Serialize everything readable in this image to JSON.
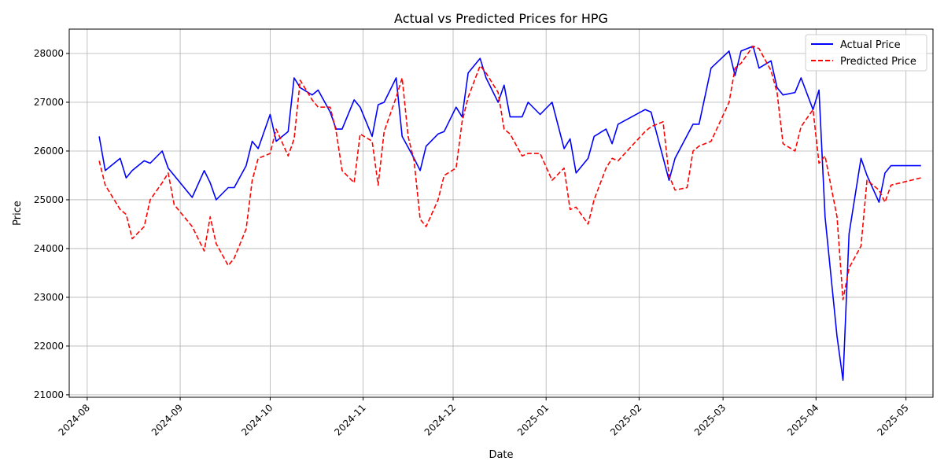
{
  "chart_data": {
    "type": "line",
    "title": "Actual vs Predicted Prices for HPG",
    "xlabel": "Date",
    "ylabel": "Price",
    "x_ticks": [
      "2024-08-01",
      "2024-09-01",
      "2024-10-01",
      "2024-11-01",
      "2024-12-01",
      "2025-01-01",
      "2025-02-01",
      "2025-03-01",
      "2025-04-01",
      "2025-05-01"
    ],
    "x_tick_labels": [
      "2024-08",
      "2024-09",
      "2024-10",
      "2024-11",
      "2024-12",
      "2025-01",
      "2025-02",
      "2025-03",
      "2025-04",
      "2025-05"
    ],
    "y_ticks": [
      21000,
      22000,
      23000,
      24000,
      25000,
      26000,
      27000,
      28000
    ],
    "y_tick_labels": [
      "21000",
      "22000",
      "23000",
      "24000",
      "25000",
      "26000",
      "27000",
      "28000"
    ],
    "xlim": [
      "2024-07-26",
      "2025-05-10"
    ],
    "ylim": [
      20950,
      28500
    ],
    "grid": true,
    "legend_position": "top-right",
    "series": [
      {
        "name": "Actual Price",
        "color": "#0000ff",
        "dash": "solid",
        "points": [
          [
            "2024-08-05",
            26300
          ],
          [
            "2024-08-07",
            25600
          ],
          [
            "2024-08-12",
            25850
          ],
          [
            "2024-08-14",
            25450
          ],
          [
            "2024-08-16",
            25600
          ],
          [
            "2024-08-20",
            25800
          ],
          [
            "2024-08-22",
            25750
          ],
          [
            "2024-08-26",
            26000
          ],
          [
            "2024-08-28",
            25650
          ],
          [
            "2024-08-30",
            25500
          ],
          [
            "2024-09-05",
            25050
          ],
          [
            "2024-09-09",
            25600
          ],
          [
            "2024-09-11",
            25350
          ],
          [
            "2024-09-13",
            25000
          ],
          [
            "2024-09-17",
            25250
          ],
          [
            "2024-09-19",
            25250
          ],
          [
            "2024-09-23",
            25700
          ],
          [
            "2024-09-25",
            26200
          ],
          [
            "2024-09-27",
            26050
          ],
          [
            "2024-10-01",
            26750
          ],
          [
            "2024-10-03",
            26200
          ],
          [
            "2024-10-07",
            26400
          ],
          [
            "2024-10-09",
            27500
          ],
          [
            "2024-10-11",
            27300
          ],
          [
            "2024-10-15",
            27150
          ],
          [
            "2024-10-17",
            27250
          ],
          [
            "2024-10-21",
            26800
          ],
          [
            "2024-10-23",
            26450
          ],
          [
            "2024-10-25",
            26450
          ],
          [
            "2024-10-29",
            27050
          ],
          [
            "2024-10-31",
            26900
          ],
          [
            "2024-11-04",
            26300
          ],
          [
            "2024-11-06",
            26950
          ],
          [
            "2024-11-08",
            27000
          ],
          [
            "2024-11-12",
            27500
          ],
          [
            "2024-11-14",
            26300
          ],
          [
            "2024-11-18",
            25850
          ],
          [
            "2024-11-20",
            25600
          ],
          [
            "2024-11-22",
            26100
          ],
          [
            "2024-11-26",
            26350
          ],
          [
            "2024-11-28",
            26400
          ],
          [
            "2024-12-02",
            26900
          ],
          [
            "2024-12-04",
            26700
          ],
          [
            "2024-12-06",
            27600
          ],
          [
            "2024-12-10",
            27900
          ],
          [
            "2024-12-12",
            27500
          ],
          [
            "2024-12-16",
            27000
          ],
          [
            "2024-12-18",
            27350
          ],
          [
            "2024-12-20",
            26700
          ],
          [
            "2024-12-24",
            26700
          ],
          [
            "2024-12-26",
            27000
          ],
          [
            "2024-12-30",
            26750
          ],
          [
            "2025-01-03",
            27000
          ],
          [
            "2025-01-07",
            26050
          ],
          [
            "2025-01-09",
            26250
          ],
          [
            "2025-01-11",
            25550
          ],
          [
            "2025-01-15",
            25850
          ],
          [
            "2025-01-17",
            26300
          ],
          [
            "2025-01-21",
            26450
          ],
          [
            "2025-01-23",
            26150
          ],
          [
            "2025-01-25",
            26550
          ],
          [
            "2025-02-03",
            26850
          ],
          [
            "2025-02-05",
            26800
          ],
          [
            "2025-02-11",
            25400
          ],
          [
            "2025-02-13",
            25850
          ],
          [
            "2025-02-19",
            26550
          ],
          [
            "2025-02-21",
            26550
          ],
          [
            "2025-02-25",
            27700
          ],
          [
            "2025-03-03",
            28050
          ],
          [
            "2025-03-05",
            27550
          ],
          [
            "2025-03-07",
            28050
          ],
          [
            "2025-03-11",
            28150
          ],
          [
            "2025-03-13",
            27700
          ],
          [
            "2025-03-17",
            27850
          ],
          [
            "2025-03-19",
            27300
          ],
          [
            "2025-03-21",
            27150
          ],
          [
            "2025-03-25",
            27200
          ],
          [
            "2025-03-27",
            27500
          ],
          [
            "2025-03-31",
            26850
          ],
          [
            "2025-04-02",
            27250
          ],
          [
            "2025-04-04",
            24650
          ],
          [
            "2025-04-08",
            22200
          ],
          [
            "2025-04-10",
            21300
          ],
          [
            "2025-04-12",
            24300
          ],
          [
            "2025-04-16",
            25850
          ],
          [
            "2025-04-18",
            25500
          ],
          [
            "2025-04-22",
            24950
          ],
          [
            "2025-04-24",
            25550
          ],
          [
            "2025-04-26",
            25700
          ],
          [
            "2025-05-06",
            25700
          ]
        ]
      },
      {
        "name": "Predicted Price",
        "color": "#ff0000",
        "dash": "dashed",
        "points": [
          [
            "2024-08-05",
            25800
          ],
          [
            "2024-08-07",
            25300
          ],
          [
            "2024-08-12",
            24800
          ],
          [
            "2024-08-14",
            24700
          ],
          [
            "2024-08-16",
            24200
          ],
          [
            "2024-08-20",
            24450
          ],
          [
            "2024-08-22",
            25000
          ],
          [
            "2024-08-26",
            25350
          ],
          [
            "2024-08-28",
            25550
          ],
          [
            "2024-08-30",
            24900
          ],
          [
            "2024-09-05",
            24450
          ],
          [
            "2024-09-09",
            23950
          ],
          [
            "2024-09-11",
            24650
          ],
          [
            "2024-09-13",
            24100
          ],
          [
            "2024-09-17",
            23650
          ],
          [
            "2024-09-19",
            23800
          ],
          [
            "2024-09-23",
            24400
          ],
          [
            "2024-09-25",
            25400
          ],
          [
            "2024-09-27",
            25850
          ],
          [
            "2024-10-01",
            25950
          ],
          [
            "2024-10-03",
            26450
          ],
          [
            "2024-10-07",
            25900
          ],
          [
            "2024-10-09",
            26250
          ],
          [
            "2024-10-11",
            27450
          ],
          [
            "2024-10-15",
            27050
          ],
          [
            "2024-10-17",
            26900
          ],
          [
            "2024-10-21",
            26900
          ],
          [
            "2024-10-23",
            26400
          ],
          [
            "2024-10-25",
            25600
          ],
          [
            "2024-10-29",
            25350
          ],
          [
            "2024-10-31",
            26350
          ],
          [
            "2024-11-04",
            26200
          ],
          [
            "2024-11-06",
            25300
          ],
          [
            "2024-11-08",
            26400
          ],
          [
            "2024-11-12",
            27100
          ],
          [
            "2024-11-14",
            27500
          ],
          [
            "2024-11-16",
            26300
          ],
          [
            "2024-11-18",
            25800
          ],
          [
            "2024-11-20",
            24600
          ],
          [
            "2024-11-22",
            24450
          ],
          [
            "2024-11-26",
            25000
          ],
          [
            "2024-11-28",
            25500
          ],
          [
            "2024-12-02",
            25650
          ],
          [
            "2024-12-04",
            26600
          ],
          [
            "2024-12-06",
            27100
          ],
          [
            "2024-12-10",
            27750
          ],
          [
            "2024-12-12",
            27600
          ],
          [
            "2024-12-16",
            27200
          ],
          [
            "2024-12-18",
            26450
          ],
          [
            "2024-12-20",
            26350
          ],
          [
            "2024-12-24",
            25900
          ],
          [
            "2024-12-26",
            25950
          ],
          [
            "2024-12-30",
            25950
          ],
          [
            "2025-01-03",
            25400
          ],
          [
            "2025-01-07",
            25650
          ],
          [
            "2025-01-09",
            24800
          ],
          [
            "2025-01-11",
            24850
          ],
          [
            "2025-01-15",
            24500
          ],
          [
            "2025-01-17",
            25000
          ],
          [
            "2025-01-21",
            25650
          ],
          [
            "2025-01-23",
            25850
          ],
          [
            "2025-01-25",
            25800
          ],
          [
            "2025-02-03",
            26400
          ],
          [
            "2025-02-05",
            26500
          ],
          [
            "2025-02-09",
            26600
          ],
          [
            "2025-02-11",
            25500
          ],
          [
            "2025-02-13",
            25200
          ],
          [
            "2025-02-17",
            25250
          ],
          [
            "2025-02-19",
            26000
          ],
          [
            "2025-02-21",
            26100
          ],
          [
            "2025-02-25",
            26200
          ],
          [
            "2025-03-03",
            27000
          ],
          [
            "2025-03-05",
            27700
          ],
          [
            "2025-03-07",
            27800
          ],
          [
            "2025-03-11",
            28150
          ],
          [
            "2025-03-13",
            28100
          ],
          [
            "2025-03-17",
            27650
          ],
          [
            "2025-03-19",
            27200
          ],
          [
            "2025-03-21",
            26150
          ],
          [
            "2025-03-25",
            26000
          ],
          [
            "2025-03-27",
            26500
          ],
          [
            "2025-03-31",
            26850
          ],
          [
            "2025-04-02",
            25750
          ],
          [
            "2025-04-04",
            25900
          ],
          [
            "2025-04-08",
            24650
          ],
          [
            "2025-04-10",
            22950
          ],
          [
            "2025-04-12",
            23600
          ],
          [
            "2025-04-16",
            24050
          ],
          [
            "2025-04-18",
            25400
          ],
          [
            "2025-04-22",
            25200
          ],
          [
            "2025-04-24",
            24950
          ],
          [
            "2025-04-26",
            25300
          ],
          [
            "2025-05-06",
            25450
          ]
        ]
      }
    ]
  }
}
